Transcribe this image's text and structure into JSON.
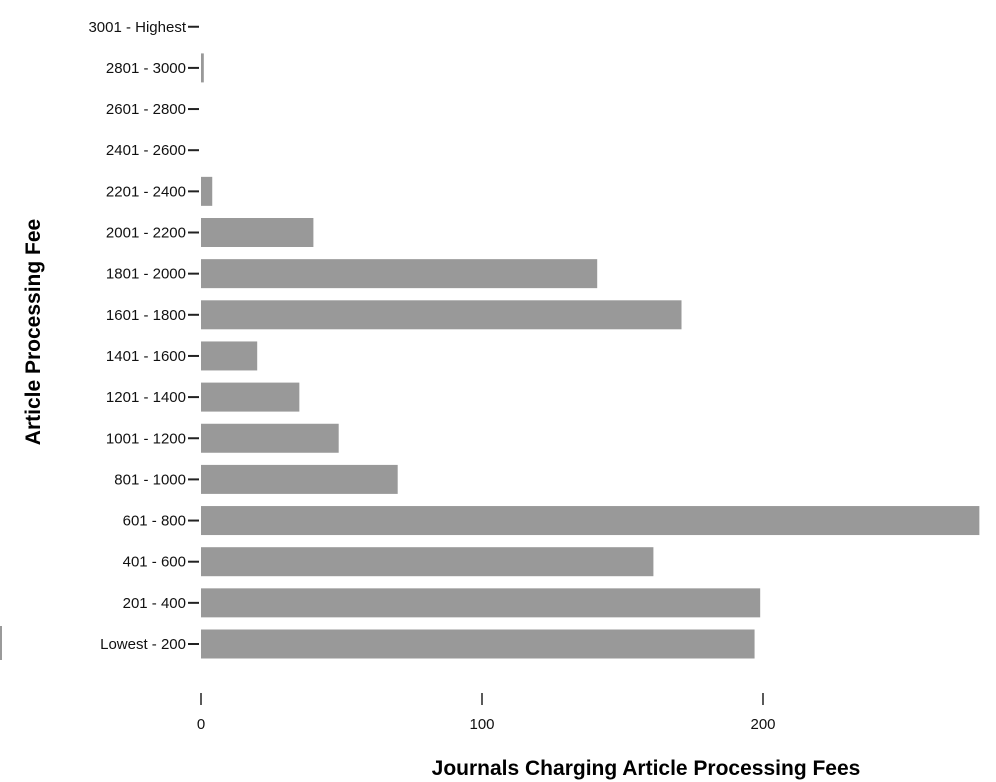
{
  "chart_data": {
    "type": "bar",
    "orientation": "horizontal",
    "categories": [
      "Lowest - 200",
      "201 - 400",
      "401 - 600",
      "601 - 800",
      "801 - 1000",
      "1001 - 1200",
      "1201 - 1400",
      "1401 - 1600",
      "1601 - 1800",
      "1801 - 2000",
      "2001 - 2200",
      "2201 - 2400",
      "2401 - 2600",
      "2601 - 2800",
      "2801 - 3000",
      "3001 - Highest"
    ],
    "values": [
      197,
      199,
      161,
      277,
      70,
      49,
      35,
      20,
      171,
      141,
      40,
      4,
      0,
      0,
      1,
      0
    ],
    "title": "",
    "xlabel": "Journals Charging Article Processing Fees",
    "ylabel": "Article Processing Fee",
    "xlim": [
      0,
      277
    ],
    "xticks": [
      0,
      100,
      200
    ],
    "grid": false,
    "legend": "none",
    "bar_color": "#999999"
  }
}
